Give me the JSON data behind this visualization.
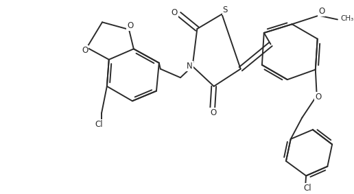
{
  "bg_color": "#ffffff",
  "line_color": "#2a2a2a",
  "line_width": 1.4,
  "figsize": [
    5.16,
    2.83
  ],
  "dpi": 100,
  "xlim": [
    0,
    516
  ],
  "ylim": [
    0,
    283
  ]
}
